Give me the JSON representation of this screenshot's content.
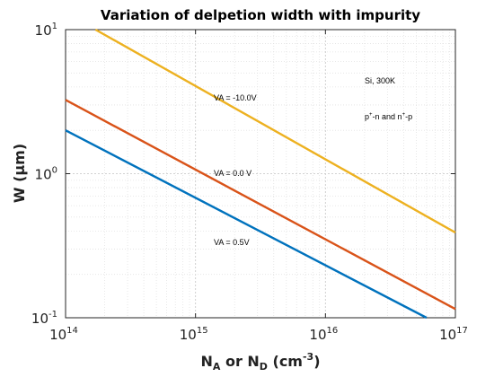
{
  "chart_data": {
    "type": "line",
    "title": "Variation of delpetion width with impurity",
    "xlabel": {
      "base1": "N",
      "sub1": "A",
      "mid": " or N",
      "sub2": "D",
      "tail": " (cm",
      "sup": "-3",
      "end": ")"
    },
    "ylabel": "W (μm)",
    "x_scale": "log",
    "y_scale": "log",
    "xlim": [
      100000000000000.0,
      1e+17
    ],
    "ylim": [
      0.1,
      10
    ],
    "grid": true,
    "x_ticks": [
      {
        "base": "10",
        "exp": "14"
      },
      {
        "base": "10",
        "exp": "15"
      },
      {
        "base": "10",
        "exp": "16"
      },
      {
        "base": "10",
        "exp": "17"
      }
    ],
    "y_ticks": [
      {
        "base": "10",
        "exp": "1"
      },
      {
        "base": "10",
        "exp": "0"
      },
      {
        "base": "10",
        "exp": "-1"
      }
    ],
    "series": [
      {
        "label": "VA = -10.0V",
        "color": "#EDB120",
        "x": [
          170000000000000.0,
          1e+17
        ],
        "y": [
          10,
          0.39
        ]
      },
      {
        "label": "VA = 0.0 V",
        "color": "#D95319",
        "x": [
          100000000000000.0,
          1e+17
        ],
        "y": [
          3.25,
          0.115
        ]
      },
      {
        "label": "VA = 0.5V",
        "color": "#0072BD",
        "x": [
          100000000000000.0,
          6e+16
        ],
        "y": [
          2.0,
          0.1
        ]
      }
    ],
    "annotations": {
      "material": "Si, 300K",
      "junction": {
        "a": "p",
        "a_sup": "+",
        "b": "-n and n",
        "b_sup": "+",
        "c": "-p"
      }
    }
  }
}
